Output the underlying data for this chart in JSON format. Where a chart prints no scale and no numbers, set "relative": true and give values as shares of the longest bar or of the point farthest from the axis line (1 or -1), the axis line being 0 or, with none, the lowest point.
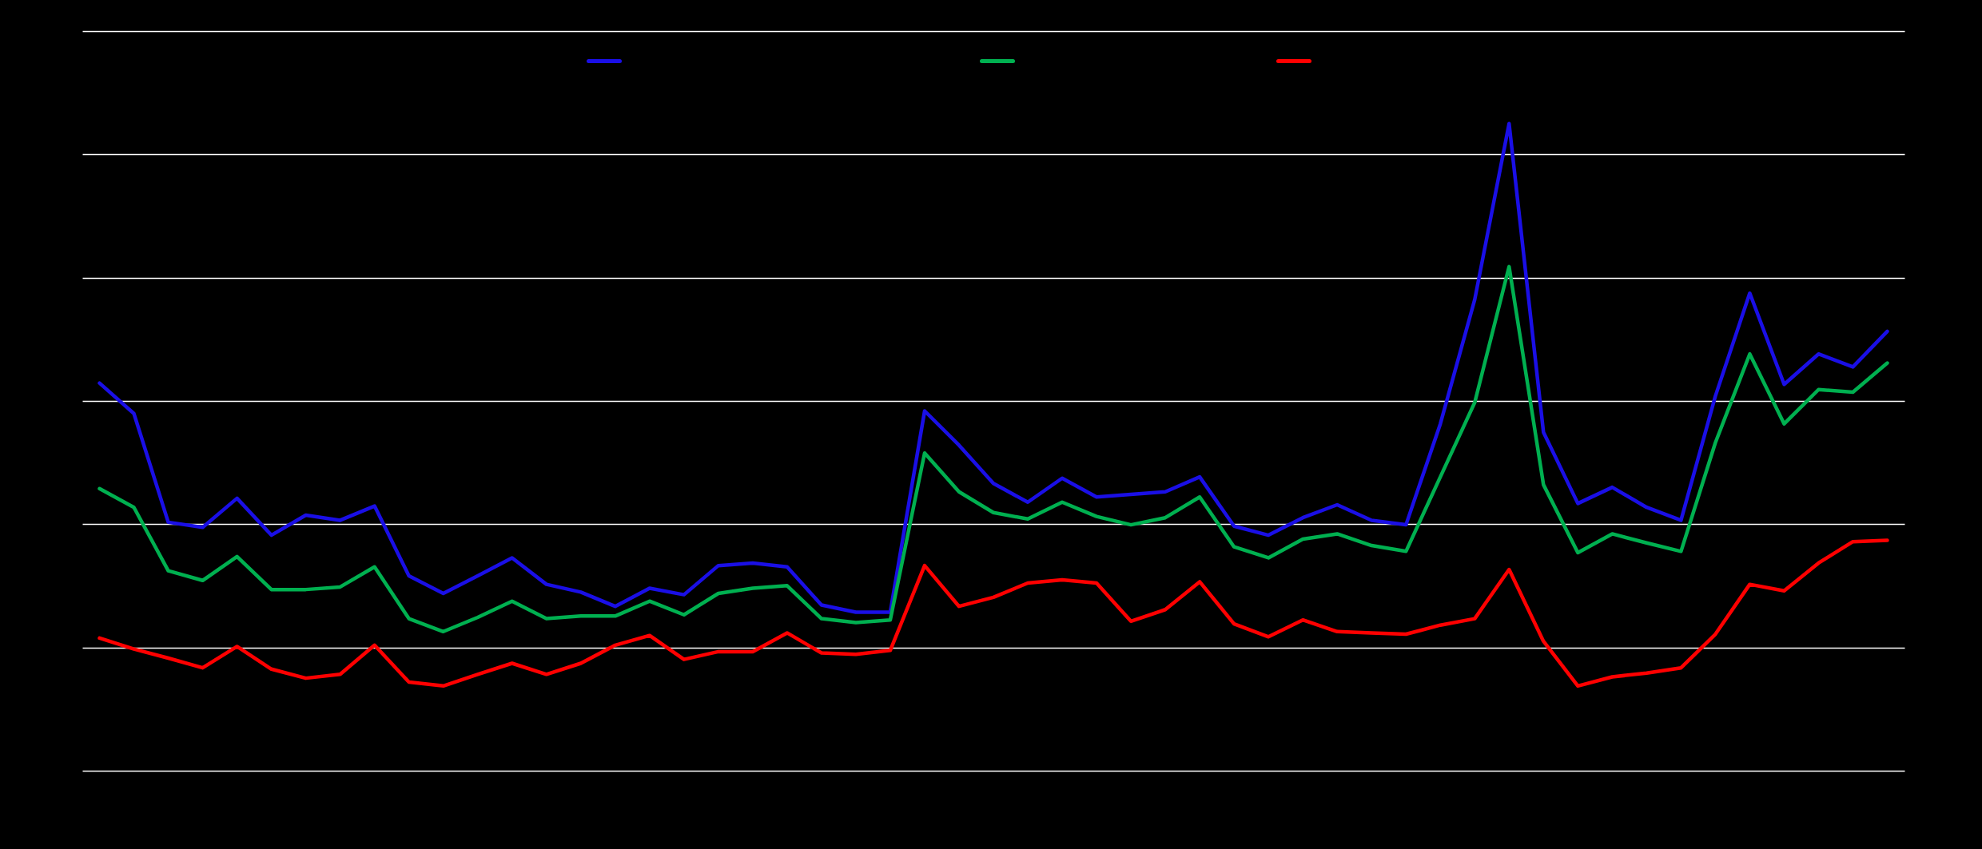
{
  "chart_data": {
    "type": "line",
    "relative": true,
    "grid": "y",
    "categories": [
      null,
      null,
      null,
      null,
      null,
      null,
      null,
      null,
      null,
      null,
      null,
      null,
      null,
      null,
      null,
      null,
      null,
      null,
      null,
      null,
      null,
      null,
      null,
      null,
      null,
      null,
      null,
      null,
      null,
      null,
      null,
      null,
      null,
      null,
      null,
      null,
      null,
      null,
      null,
      null,
      null,
      null,
      null,
      null,
      null,
      null,
      null,
      null,
      null,
      null,
      null,
      null,
      null
    ],
    "series": [
      {
        "color": "#1a0fe6",
        "values": [
          0.599,
          0.552,
          0.384,
          0.376,
          0.421,
          0.364,
          0.395,
          0.387,
          0.409,
          0.301,
          0.274,
          0.301,
          0.329,
          0.288,
          0.276,
          0.254,
          0.282,
          0.272,
          0.317,
          0.321,
          0.315,
          0.256,
          0.245,
          0.245,
          0.556,
          0.503,
          0.444,
          0.415,
          0.452,
          0.423,
          0.427,
          0.431,
          0.454,
          0.378,
          0.364,
          0.391,
          0.411,
          0.387,
          0.38,
          0.536,
          0.728,
          1,
          0.523,
          0.413,
          0.438,
          0.407,
          0.387,
          0.579,
          0.738,
          0.597,
          0.644,
          0.624,
          0.679
        ]
      },
      {
        "color": "#00b050",
        "values": [
          0.436,
          0.407,
          0.309,
          0.294,
          0.331,
          0.28,
          0.28,
          0.284,
          0.315,
          0.235,
          0.215,
          0.237,
          0.262,
          0.235,
          0.239,
          0.239,
          0.262,
          0.241,
          0.274,
          0.282,
          0.286,
          0.235,
          0.229,
          0.233,
          0.491,
          0.431,
          0.399,
          0.389,
          0.415,
          0.393,
          0.38,
          0.391,
          0.423,
          0.346,
          0.329,
          0.358,
          0.366,
          0.348,
          0.339,
          0.454,
          0.569,
          0.779,
          0.442,
          0.337,
          0.366,
          0.352,
          0.339,
          0.507,
          0.644,
          0.536,
          0.589,
          0.585,
          0.63
        ]
      },
      {
        "color": "#ff0000",
        "values": [
          0.205,
          0.188,
          0.174,
          0.159,
          0.192,
          0.157,
          0.143,
          0.149,
          0.194,
          0.137,
          0.131,
          0.149,
          0.166,
          0.149,
          0.166,
          0.194,
          0.209,
          0.172,
          0.184,
          0.184,
          0.213,
          0.182,
          0.18,
          0.186,
          0.317,
          0.254,
          0.268,
          0.29,
          0.295,
          0.29,
          0.231,
          0.249,
          0.292,
          0.227,
          0.207,
          0.233,
          0.215,
          0.213,
          0.211,
          0.225,
          0.235,
          0.311,
          0.2,
          0.131,
          0.145,
          0.151,
          0.159,
          0.211,
          0.288,
          0.278,
          0.321,
          0.354,
          0.356
        ]
      }
    ]
  }
}
